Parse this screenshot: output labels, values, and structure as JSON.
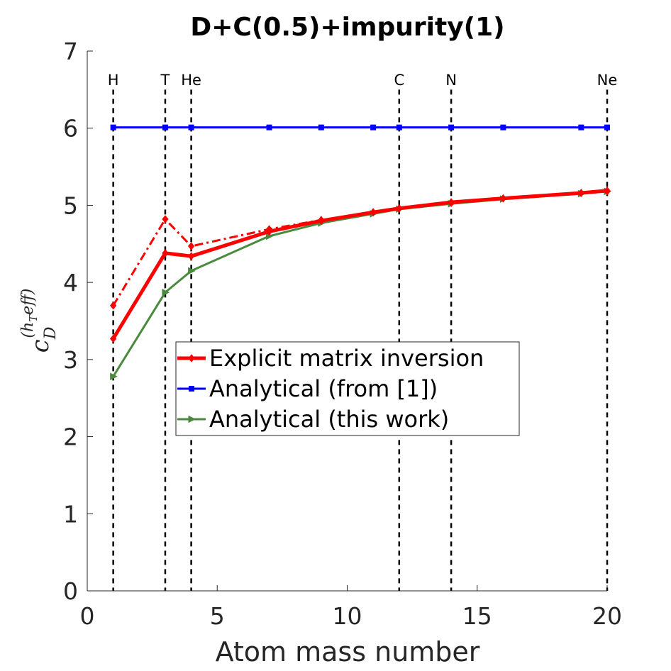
{
  "chart_data": {
    "type": "line",
    "title": "D+C(0.5)+impurity(1)",
    "xlabel": "Atom mass number",
    "ylabel": {
      "base": "c",
      "sub": "D",
      "sup_base": "(h",
      "sup_sub": "T",
      "sup_tail": "eff)"
    },
    "xlim": [
      0,
      20
    ],
    "ylim": [
      0,
      7
    ],
    "xticks": [
      0,
      5,
      10,
      15,
      20
    ],
    "yticks": [
      0,
      1,
      2,
      3,
      4,
      5,
      6,
      7
    ],
    "grid": false,
    "legend_position": "center",
    "element_markers": [
      {
        "label": "H",
        "x": 1
      },
      {
        "label": "T",
        "x": 3
      },
      {
        "label": "He",
        "x": 4
      },
      {
        "label": "C",
        "x": 12
      },
      {
        "label": "N",
        "x": 14
      },
      {
        "label": "Ne",
        "x": 20
      }
    ],
    "series": [
      {
        "name": "Explicit matrix inversion",
        "color": "#ff0000",
        "style": "solid-thick",
        "marker": "diamond",
        "in_legend": true,
        "x": [
          1,
          3,
          4,
          7,
          9,
          11,
          12,
          14,
          16,
          19,
          20
        ],
        "y": [
          3.27,
          4.38,
          4.34,
          4.66,
          4.8,
          4.91,
          4.96,
          5.04,
          5.09,
          5.16,
          5.19
        ]
      },
      {
        "name": "Explicit matrix inversion (dash-dot)",
        "color": "#ff0000",
        "style": "dashdot",
        "marker": "diamond",
        "in_legend": false,
        "x": [
          1,
          3,
          4,
          7,
          9,
          11,
          12,
          14,
          16,
          19,
          20
        ],
        "y": [
          3.7,
          4.82,
          4.47,
          4.69,
          4.81,
          4.91,
          4.96,
          5.03,
          5.09,
          5.16,
          5.18
        ]
      },
      {
        "name": "Analytical (from [1])",
        "color": "#0000ff",
        "style": "solid",
        "marker": "square",
        "in_legend": true,
        "x": [
          1,
          3,
          4,
          7,
          9,
          11,
          12,
          14,
          16,
          19,
          20
        ],
        "y": [
          6.01,
          6.01,
          6.01,
          6.01,
          6.01,
          6.01,
          6.01,
          6.01,
          6.01,
          6.01,
          6.01
        ]
      },
      {
        "name": "Analytical (this work)",
        "color": "#4a8a3c",
        "style": "solid",
        "marker": "triangle",
        "in_legend": true,
        "x": [
          1,
          3,
          4,
          7,
          9,
          11,
          12,
          14,
          16,
          19,
          20
        ],
        "y": [
          2.78,
          3.87,
          4.15,
          4.6,
          4.77,
          4.89,
          4.95,
          5.02,
          5.08,
          5.15,
          5.18
        ]
      }
    ]
  }
}
